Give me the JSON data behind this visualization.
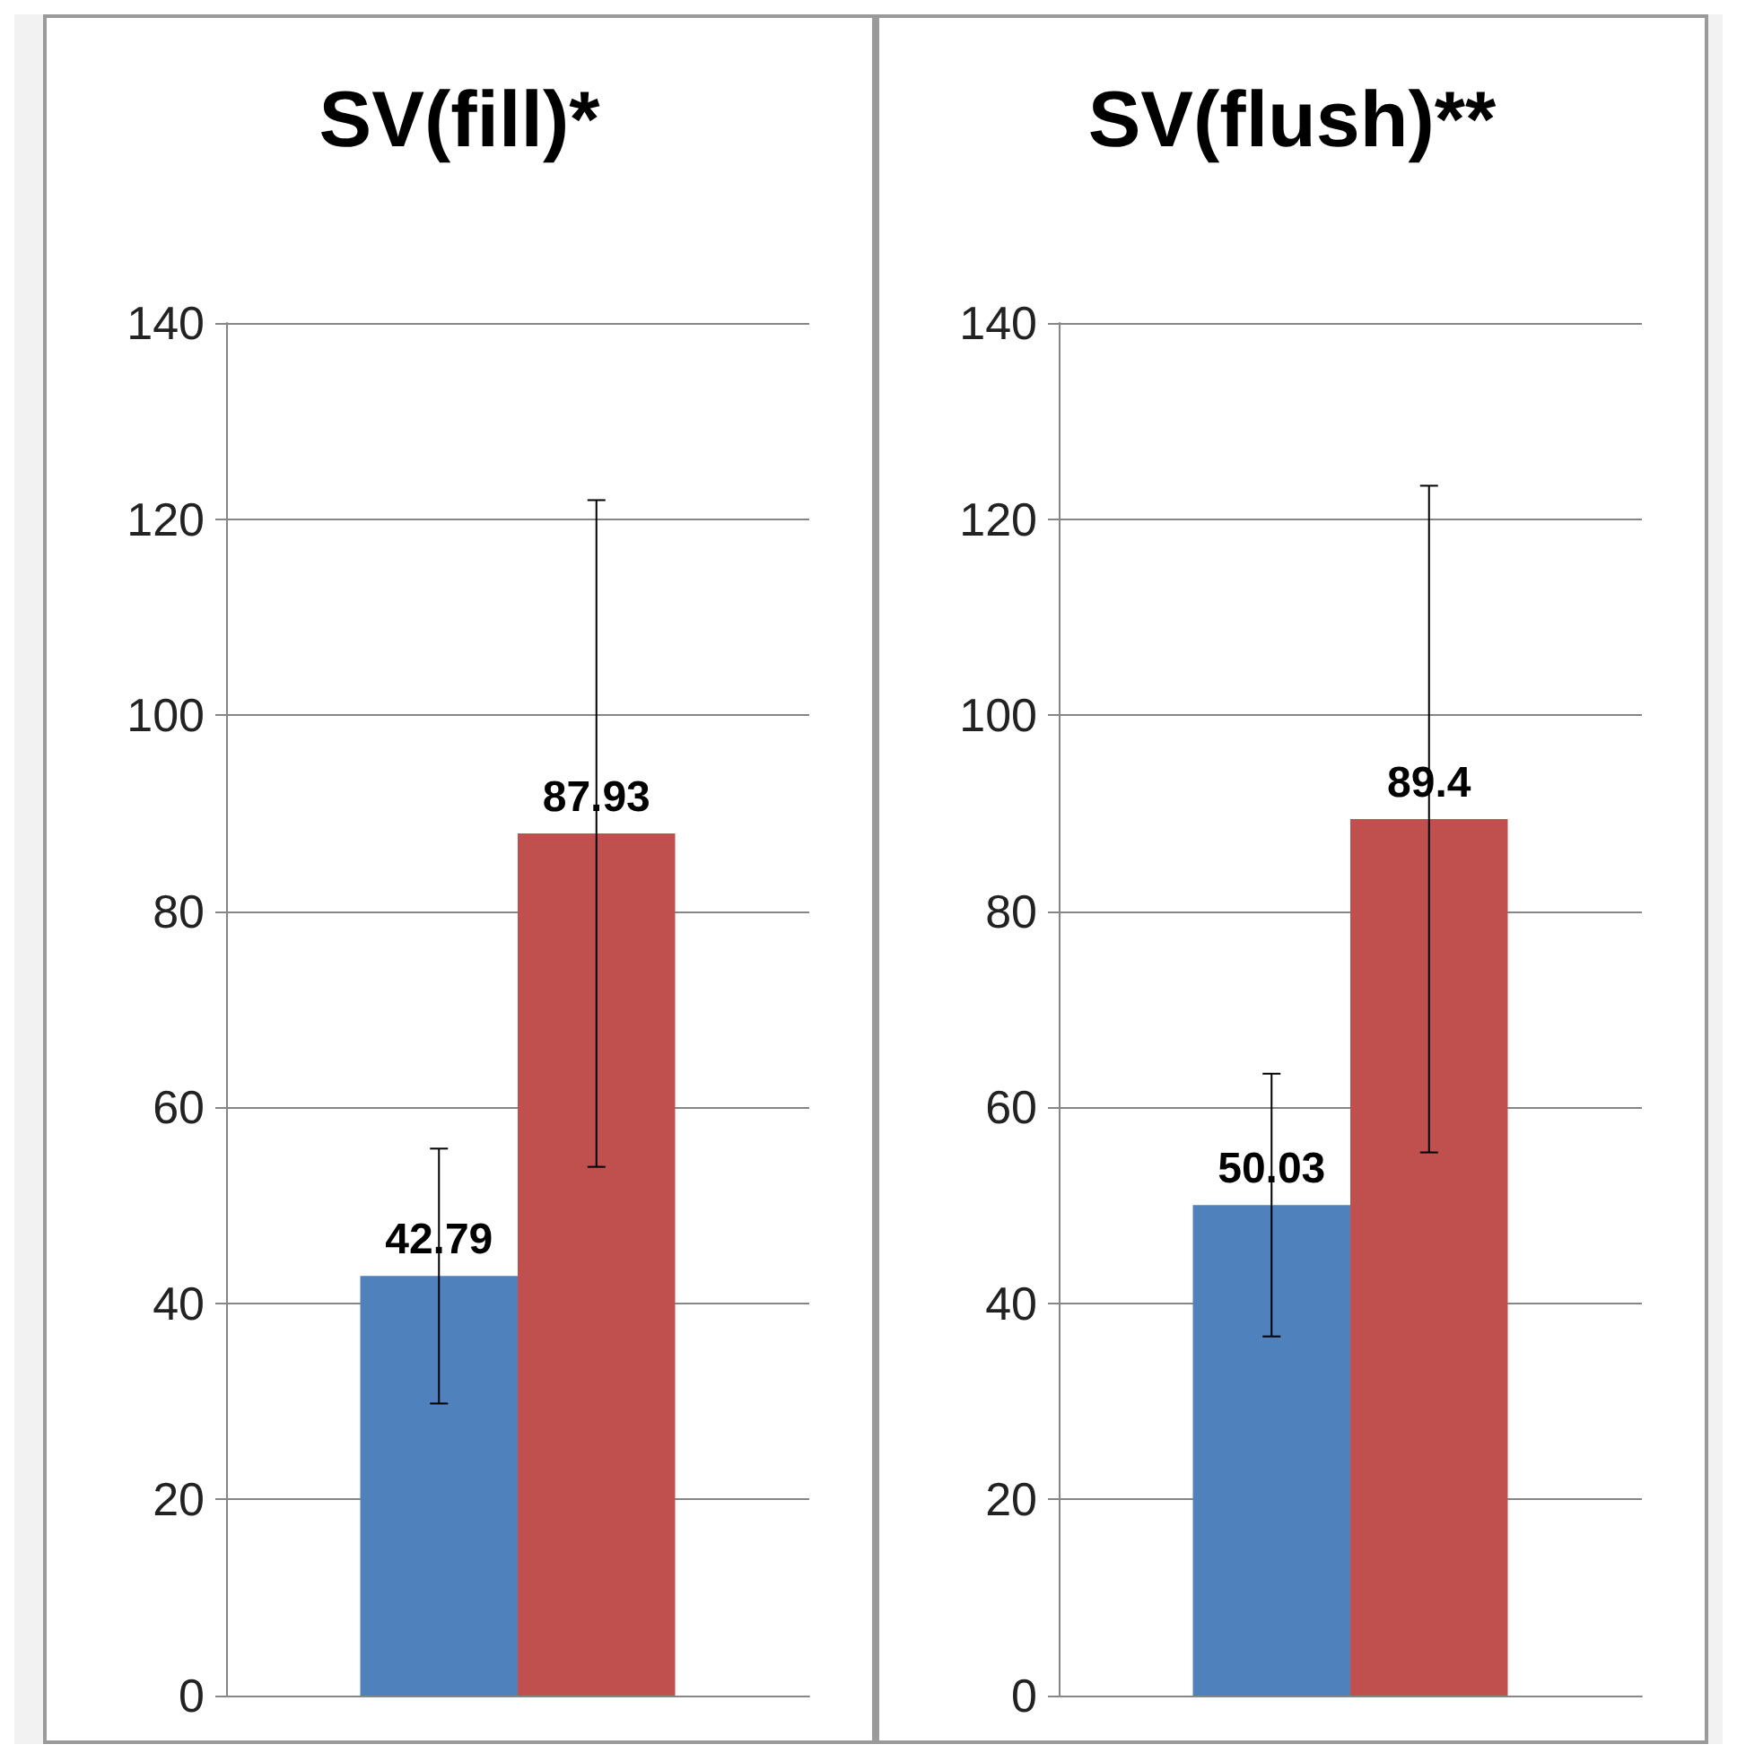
{
  "chart_data": [
    {
      "type": "bar",
      "title": "SV(fill)*",
      "categories": [
        null
      ],
      "series": [
        {
          "color": "#4f81bd",
          "values": [
            42.79
          ],
          "errors": [
            13
          ]
        },
        {
          "color": "#c0504d",
          "values": [
            87.93
          ],
          "errors": [
            34
          ]
        }
      ],
      "ylim": [
        0,
        140
      ],
      "yticks": [
        0,
        20,
        40,
        60,
        80,
        100,
        120,
        140
      ],
      "grid": "y",
      "data_labels": true,
      "tick_labels": "y"
    },
    {
      "type": "bar",
      "title": "SV(flush)**",
      "categories": [
        null
      ],
      "series": [
        {
          "color": "#4f81bd",
          "values": [
            50.03
          ],
          "errors": [
            13.4
          ]
        },
        {
          "color": "#c0504d",
          "values": [
            89.4
          ],
          "errors": [
            34
          ]
        }
      ],
      "ylim": [
        0,
        140
      ],
      "yticks": [
        0,
        20,
        40,
        60,
        80,
        100,
        120,
        140
      ],
      "grid": "y",
      "data_labels": true,
      "tick_labels": "y"
    }
  ]
}
